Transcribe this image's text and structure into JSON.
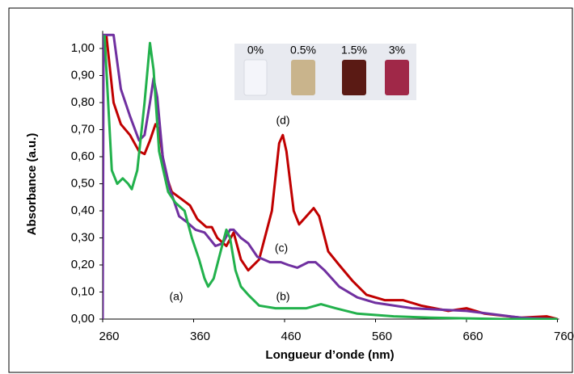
{
  "chart_data": {
    "type": "line",
    "x_label": "Longueur d’onde (nm)",
    "y_label": "Absorbance (a.u.)",
    "xlim": [
      260,
      760
    ],
    "xticks": [
      260,
      360,
      460,
      560,
      660,
      760
    ],
    "ylim": [
      0,
      1.05
    ],
    "yticks": [
      {
        "value": 0,
        "label": "0,00"
      },
      {
        "value": 0.1,
        "label": "0,10"
      },
      {
        "value": 0.2,
        "label": "0,20"
      },
      {
        "value": 0.3,
        "label": "0,30"
      },
      {
        "value": 0.4,
        "label": "0,40"
      },
      {
        "value": 0.5,
        "label": "0,50"
      },
      {
        "value": 0.6,
        "label": "0,60"
      },
      {
        "value": 0.7,
        "label": "0,70"
      },
      {
        "value": 0.8,
        "label": "0,80"
      },
      {
        "value": 0.9,
        "label": "0,90"
      },
      {
        "value": 1.0,
        "label": "1,00"
      }
    ],
    "series": [
      {
        "color": "#c00000",
        "x": [
          264,
          272,
          280,
          290,
          300,
          306,
          312,
          318,
          322,
          328,
          336,
          348,
          356,
          364,
          374,
          380,
          386,
          396,
          404,
          412,
          420,
          432,
          446,
          454,
          458,
          462,
          470,
          476,
          484,
          492,
          498,
          508,
          520,
          535,
          550,
          570,
          590,
          610,
          640,
          660,
          680,
          720,
          748,
          760
        ],
        "values": [
          1.05,
          0.8,
          0.72,
          0.68,
          0.62,
          0.61,
          0.66,
          0.72,
          0.7,
          0.55,
          0.47,
          0.44,
          0.42,
          0.37,
          0.34,
          0.34,
          0.3,
          0.27,
          0.32,
          0.22,
          0.18,
          0.22,
          0.4,
          0.65,
          0.68,
          0.62,
          0.4,
          0.35,
          0.38,
          0.41,
          0.38,
          0.25,
          0.2,
          0.14,
          0.09,
          0.07,
          0.07,
          0.05,
          0.03,
          0.04,
          0.02,
          0.005,
          0.01,
          0
        ]
      },
      {
        "color": "#7030a0",
        "x": [
          260,
          261,
          272,
          280,
          290,
          300,
          306,
          312,
          316,
          320,
          326,
          334,
          344,
          352,
          362,
          372,
          384,
          392,
          400,
          404,
          412,
          420,
          430,
          444,
          456,
          464,
          474,
          486,
          494,
          504,
          520,
          540,
          560,
          600,
          660,
          720,
          760
        ],
        "values": [
          0,
          1.05,
          1.05,
          0.85,
          0.75,
          0.66,
          0.68,
          0.8,
          0.89,
          0.82,
          0.6,
          0.48,
          0.38,
          0.36,
          0.33,
          0.32,
          0.27,
          0.28,
          0.33,
          0.33,
          0.3,
          0.28,
          0.23,
          0.21,
          0.21,
          0.2,
          0.19,
          0.21,
          0.21,
          0.18,
          0.12,
          0.08,
          0.06,
          0.04,
          0.03,
          0.005,
          0
        ]
      },
      {
        "color": "#22b14c",
        "x": [
          262,
          266,
          270,
          276,
          282,
          288,
          292,
          298,
          306,
          312,
          316,
          322,
          332,
          340,
          350,
          358,
          366,
          372,
          376,
          382,
          392,
          396,
          400,
          406,
          412,
          420,
          432,
          450,
          470,
          484,
          500,
          516,
          540,
          580,
          620,
          700,
          760
        ],
        "values": [
          1.05,
          0.8,
          0.55,
          0.5,
          0.52,
          0.5,
          0.48,
          0.55,
          0.8,
          1.02,
          0.92,
          0.62,
          0.47,
          0.43,
          0.4,
          0.3,
          0.22,
          0.15,
          0.12,
          0.15,
          0.28,
          0.33,
          0.3,
          0.18,
          0.12,
          0.09,
          0.05,
          0.04,
          0.04,
          0.04,
          0.055,
          0.04,
          0.02,
          0.01,
          0.005,
          0,
          0
        ]
      }
    ],
    "annotations": [
      "(a)",
      "(b)",
      "(c)",
      "(d)"
    ],
    "inset_labels": [
      "0%",
      "0.5%",
      "1.5%",
      "3%"
    ]
  }
}
